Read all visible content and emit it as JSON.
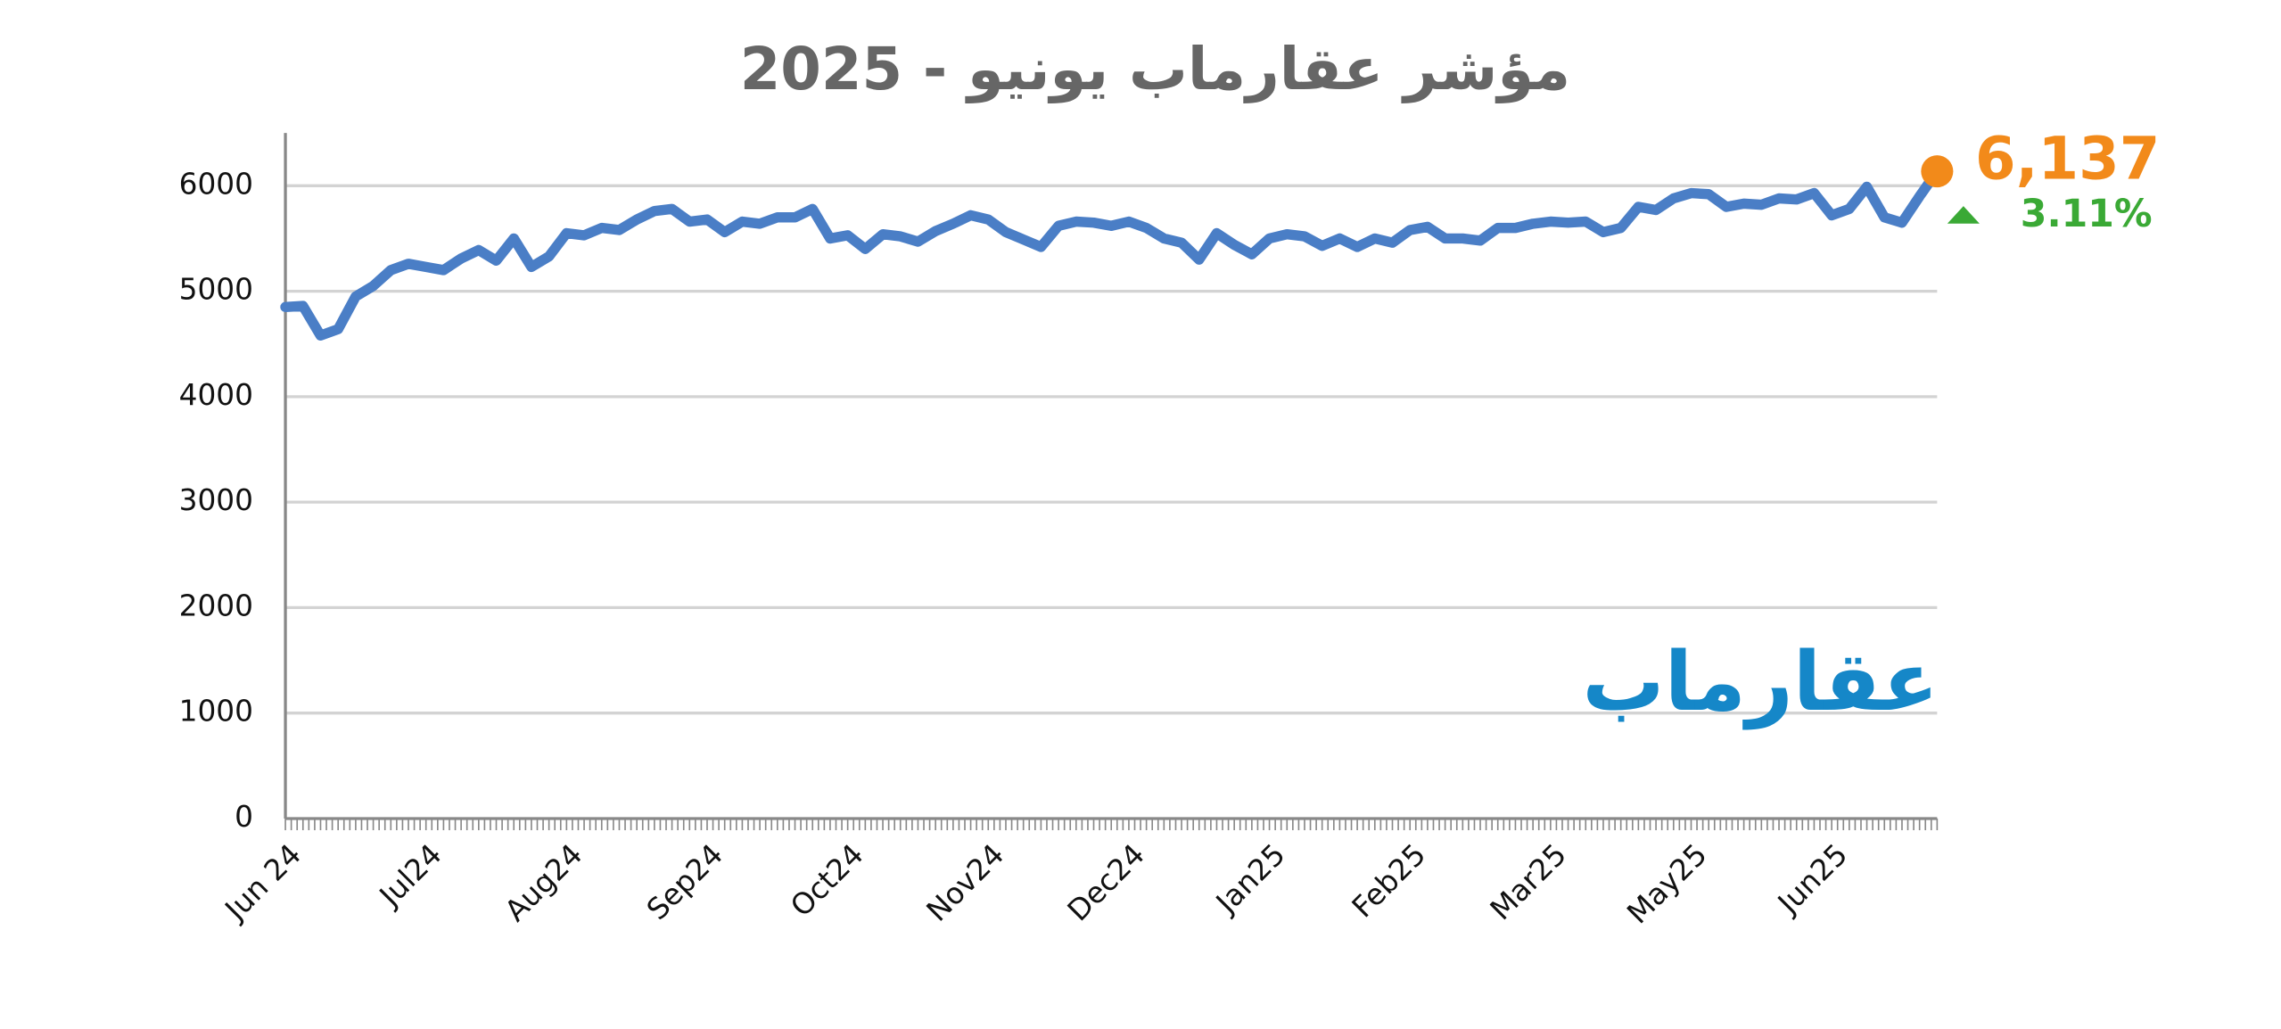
{
  "chart_data": {
    "type": "line",
    "title": "مؤشر عقارماب يونيو - 2025",
    "logo": "عقارماب",
    "change_label": "3.11%",
    "categories": [
      "Jun 24",
      null,
      null,
      null,
      null,
      null,
      null,
      null,
      "Jul24",
      null,
      null,
      null,
      null,
      null,
      null,
      null,
      "Aug24",
      null,
      null,
      null,
      null,
      null,
      null,
      null,
      "Sep24",
      null,
      null,
      null,
      null,
      null,
      null,
      null,
      "Oct24",
      null,
      null,
      null,
      null,
      null,
      null,
      null,
      "Nov24",
      null,
      null,
      null,
      null,
      null,
      null,
      null,
      "Dec24",
      null,
      null,
      null,
      null,
      null,
      null,
      null,
      "Jan25",
      null,
      null,
      null,
      null,
      null,
      null,
      null,
      "Feb25",
      null,
      null,
      null,
      null,
      null,
      null,
      null,
      "Mar25",
      null,
      null,
      null,
      null,
      null,
      null,
      null,
      "May25",
      null,
      null,
      null,
      null,
      null,
      null,
      null,
      "Jun25",
      null,
      null,
      null,
      null,
      null,
      null
    ],
    "series": [
      {
        "color": "#4a7ec6",
        "values": [
          4850,
          4860,
          4580,
          4640,
          4950,
          5050,
          5200,
          5260,
          5230,
          5200,
          5310,
          5390,
          5290,
          5500,
          5230,
          5330,
          5550,
          5530,
          5600,
          5580,
          5680,
          5760,
          5780,
          5660,
          5680,
          5560,
          5660,
          5640,
          5700,
          5700,
          5780,
          5500,
          5530,
          5400,
          5540,
          5520,
          5470,
          5570,
          5640,
          5720,
          5680,
          5560,
          5490,
          5420,
          5620,
          5660,
          5650,
          5620,
          5660,
          5600,
          5500,
          5460,
          5300,
          5550,
          5440,
          5350,
          5500,
          5540,
          5520,
          5430,
          5500,
          5420,
          5500,
          5460,
          5580,
          5610,
          5500,
          5500,
          5480,
          5600,
          5600,
          5640,
          5660,
          5650,
          5660,
          5560,
          5600,
          5800,
          5770,
          5880,
          5930,
          5920,
          5800,
          5830,
          5820,
          5880,
          5870,
          5930,
          5720,
          5780,
          5990,
          5700,
          5650,
          5900,
          6137
        ],
        "value_labels": [
          null,
          null,
          null,
          null,
          null,
          null,
          null,
          null,
          null,
          null,
          null,
          null,
          null,
          null,
          null,
          null,
          null,
          null,
          null,
          null,
          null,
          null,
          null,
          null,
          null,
          null,
          null,
          null,
          null,
          null,
          null,
          null,
          null,
          null,
          null,
          null,
          null,
          null,
          null,
          null,
          null,
          null,
          null,
          null,
          null,
          null,
          null,
          null,
          null,
          null,
          null,
          null,
          null,
          null,
          null,
          null,
          null,
          null,
          null,
          null,
          null,
          null,
          null,
          null,
          null,
          null,
          null,
          null,
          null,
          null,
          null,
          null,
          null,
          null,
          null,
          null,
          null,
          null,
          null,
          null,
          null,
          null,
          null,
          null,
          null,
          null,
          null,
          null,
          null,
          null,
          null,
          null,
          null,
          null,
          "6,137"
        ],
        "end_color": "#f28a1a"
      }
    ],
    "change_color": "#3aa935",
    "logo_color": "#1587c8",
    "ylim": [
      0,
      6500
    ],
    "yticks": [
      0,
      1000,
      2000,
      3000,
      4000,
      5000,
      6000
    ],
    "grid": true
  }
}
